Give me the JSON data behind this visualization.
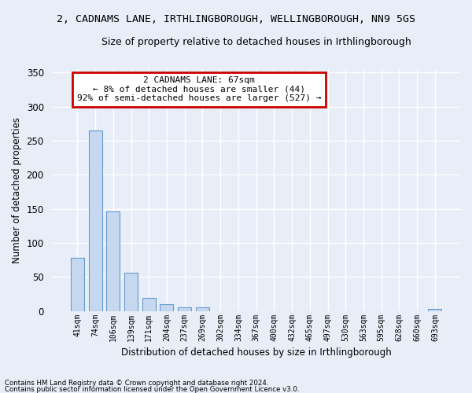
{
  "title": "2, CADNAMS LANE, IRTHLINGBOROUGH, WELLINGBOROUGH, NN9 5GS",
  "subtitle": "Size of property relative to detached houses in Irthlingborough",
  "xlabel": "Distribution of detached houses by size in Irthlingborough",
  "ylabel": "Number of detached properties",
  "footer_line1": "Contains HM Land Registry data © Crown copyright and database right 2024.",
  "footer_line2": "Contains public sector information licensed under the Open Government Licence v3.0.",
  "categories": [
    "41sqm",
    "74sqm",
    "106sqm",
    "139sqm",
    "171sqm",
    "204sqm",
    "237sqm",
    "269sqm",
    "302sqm",
    "334sqm",
    "367sqm",
    "400sqm",
    "432sqm",
    "465sqm",
    "497sqm",
    "530sqm",
    "563sqm",
    "595sqm",
    "628sqm",
    "660sqm",
    "693sqm"
  ],
  "values": [
    78,
    265,
    146,
    56,
    19,
    10,
    5,
    5,
    0,
    0,
    0,
    0,
    0,
    0,
    0,
    0,
    0,
    0,
    0,
    0,
    3
  ],
  "bar_color": "#c5d8f0",
  "bar_edge_color": "#6699cc",
  "ylim": [
    0,
    355
  ],
  "yticks": [
    0,
    50,
    100,
    150,
    200,
    250,
    300,
    350
  ],
  "annotation_line1": "2 CADNAMS LANE: 67sqm",
  "annotation_line2": "← 8% of detached houses are smaller (44)",
  "annotation_line3": "92% of semi-detached houses are larger (527) →",
  "annotation_box_color": "#ffffff",
  "annotation_border_color": "#cc0000",
  "background_color": "#e8eef8",
  "grid_color": "#ffffff",
  "title_fontsize": 9.5,
  "subtitle_fontsize": 9,
  "bar_width": 0.75
}
